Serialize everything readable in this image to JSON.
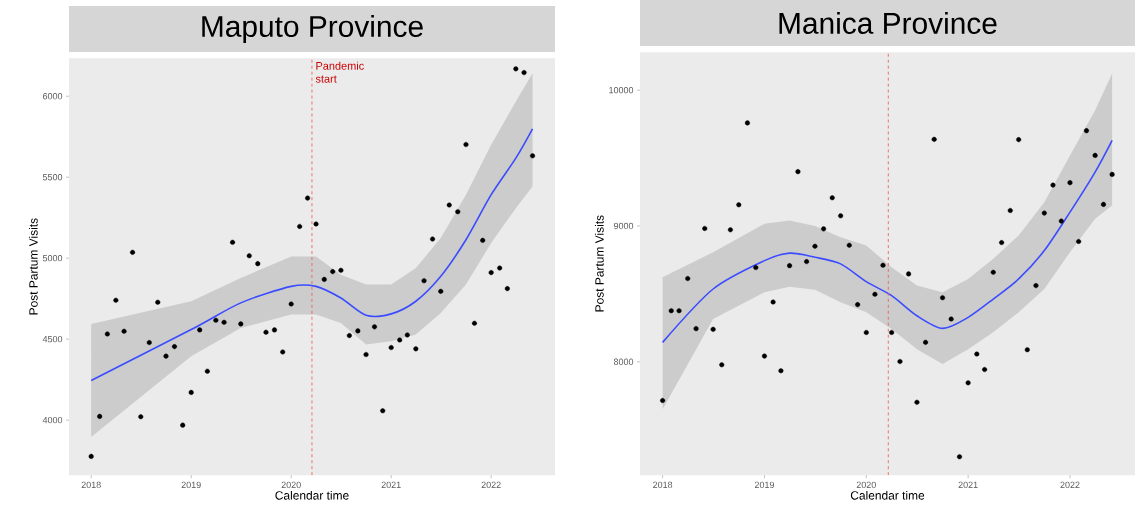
{
  "chart_data": [
    {
      "type": "scatter",
      "title": "Maputo Province",
      "xlabel": "Calendar time",
      "ylabel": "Post Partum Visits",
      "xlim": [
        "2017-10-12",
        "2022-08-22"
      ],
      "ylim": [
        3660,
        6235
      ],
      "xticks": [
        "2018",
        "2019",
        "2020",
        "2021",
        "2022"
      ],
      "yticks": [
        4000,
        4500,
        5000,
        5500,
        6000
      ],
      "ref_lines": [
        {
          "axis": "x",
          "value": "2020-03-17",
          "label": "Pandemic start",
          "color": "#f06060",
          "line_style": "dashed"
        }
      ],
      "series": [
        {
          "type": "scatter",
          "color": "#000000",
          "marker": "circle",
          "x": [
            "2018-01",
            "2018-02",
            "2018-03",
            "2018-04",
            "2018-05",
            "2018-06",
            "2018-07",
            "2018-08",
            "2018-09",
            "2018-10",
            "2018-11",
            "2018-12",
            "2019-01",
            "2019-02",
            "2019-03",
            "2019-04",
            "2019-05",
            "2019-06",
            "2019-07",
            "2019-08",
            "2019-09",
            "2019-10",
            "2019-11",
            "2019-12",
            "2020-01",
            "2020-02",
            "2020-03",
            "2020-04",
            "2020-05",
            "2020-06",
            "2020-07",
            "2020-08",
            "2020-09",
            "2020-10",
            "2020-11",
            "2020-12",
            "2021-01",
            "2021-02",
            "2021-03",
            "2021-04",
            "2021-05",
            "2021-06",
            "2021-07",
            "2021-08",
            "2021-09",
            "2021-10",
            "2021-11",
            "2021-12",
            "2022-01",
            "2022-02",
            "2022-03",
            "2022-04",
            "2022-05",
            "2022-06"
          ],
          "values": [
            3776,
            4023,
            4532,
            4740,
            4549,
            5036,
            4021,
            4479,
            4728,
            4395,
            4454,
            3969,
            4171,
            4557,
            4302,
            4617,
            4604,
            5098,
            4594,
            5015,
            4966,
            4543,
            4557,
            4421,
            4717,
            5196,
            5371,
            5211,
            4869,
            4917,
            4925,
            4522,
            4551,
            4405,
            4576,
            4058,
            4448,
            4495,
            4526,
            4440,
            4861,
            5118,
            4795,
            5328,
            5287,
            5702,
            4598,
            5110,
            4911,
            4939,
            4812,
            6169,
            6146,
            5632
          ]
        },
        {
          "type": "line",
          "color": "#3b4cff",
          "x": [
            "2018-01",
            "2019-01",
            "2019-07",
            "2020-01",
            "2020-04",
            "2020-07",
            "2020-10",
            "2021-01",
            "2021-04",
            "2021-07",
            "2021-10",
            "2022-01",
            "2022-04",
            "2022-06"
          ],
          "values": [
            4245,
            4559,
            4724,
            4826,
            4826,
            4754,
            4647,
            4656,
            4734,
            4888,
            5114,
            5392,
            5618,
            5799
          ],
          "lower": [
            3895,
            4395,
            4569,
            4652,
            4652,
            4600,
            4467,
            4487,
            4528,
            4662,
            4837,
            5094,
            5309,
            5443
          ],
          "upper": [
            4594,
            4734,
            4878,
            5011,
            5011,
            4898,
            4837,
            4837,
            4939,
            5124,
            5392,
            5700,
            5967,
            6142
          ]
        }
      ]
    },
    {
      "type": "scatter",
      "title": "Manica Province",
      "xlabel": "Calendar time",
      "ylabel": "Post Partum Visits",
      "xlim": [
        "2017-10-12",
        "2022-08-22"
      ],
      "ylim": [
        7165,
        10280
      ],
      "xticks": [
        "2018",
        "2019",
        "2020",
        "2021",
        "2022"
      ],
      "yticks": [
        8000,
        9000,
        10000
      ],
      "ref_lines": [
        {
          "axis": "x",
          "value": "2020-03-20",
          "color": "#f06060",
          "line_style": "dashed"
        }
      ],
      "series": [
        {
          "type": "scatter",
          "color": "#000000",
          "marker": "circle",
          "x": [
            "2018-01",
            "2018-02",
            "2018-03",
            "2018-04",
            "2018-05",
            "2018-06",
            "2018-07",
            "2018-08",
            "2018-09",
            "2018-10",
            "2018-11",
            "2018-12",
            "2019-01",
            "2019-02",
            "2019-03",
            "2019-04",
            "2019-05",
            "2019-06",
            "2019-07",
            "2019-08",
            "2019-09",
            "2019-10",
            "2019-11",
            "2019-12",
            "2020-01",
            "2020-02",
            "2020-03",
            "2020-04",
            "2020-05",
            "2020-06",
            "2020-07",
            "2020-08",
            "2020-09",
            "2020-10",
            "2020-11",
            "2020-12",
            "2021-01",
            "2021-02",
            "2021-03",
            "2021-04",
            "2021-05",
            "2021-06",
            "2021-07",
            "2021-08",
            "2021-09",
            "2021-10",
            "2021-11",
            "2021-12",
            "2022-01",
            "2022-02",
            "2022-03",
            "2022-04",
            "2022-05",
            "2022-06"
          ],
          "values": [
            7715,
            8376,
            8376,
            8613,
            8244,
            8982,
            8239,
            7978,
            8972,
            9156,
            9759,
            8694,
            8042,
            8440,
            7934,
            8708,
            9400,
            8738,
            8851,
            8979,
            9208,
            9075,
            8858,
            8421,
            8216,
            8497,
            8711,
            8216,
            8002,
            8647,
            7702,
            8143,
            9638,
            8472,
            8315,
            7301,
            7845,
            8057,
            7943,
            8659,
            8878,
            9114,
            9636,
            8089,
            8561,
            9095,
            9301,
            9036,
            9319,
            8886,
            9702,
            9520,
            9159,
            9380
          ]
        },
        {
          "type": "line",
          "color": "#3b4cff",
          "x": [
            "2018-01",
            "2018-07",
            "2019-01",
            "2019-04",
            "2019-07",
            "2019-10",
            "2020-01",
            "2020-04",
            "2020-07",
            "2020-10",
            "2021-01",
            "2021-04",
            "2021-07",
            "2021-10",
            "2022-01",
            "2022-04",
            "2022-06"
          ],
          "values": [
            8143,
            8536,
            8745,
            8800,
            8770,
            8721,
            8590,
            8487,
            8339,
            8246,
            8327,
            8462,
            8610,
            8819,
            9102,
            9397,
            9631
          ],
          "lower": [
            7651,
            8315,
            8512,
            8553,
            8530,
            8438,
            8364,
            8241,
            8093,
            7983,
            8093,
            8217,
            8364,
            8536,
            8807,
            9053,
            9151
          ],
          "upper": [
            8622,
            8807,
            9016,
            9041,
            9000,
            8918,
            8856,
            8696,
            8561,
            8512,
            8610,
            8758,
            8930,
            9175,
            9520,
            9852,
            10123
          ]
        }
      ]
    }
  ]
}
